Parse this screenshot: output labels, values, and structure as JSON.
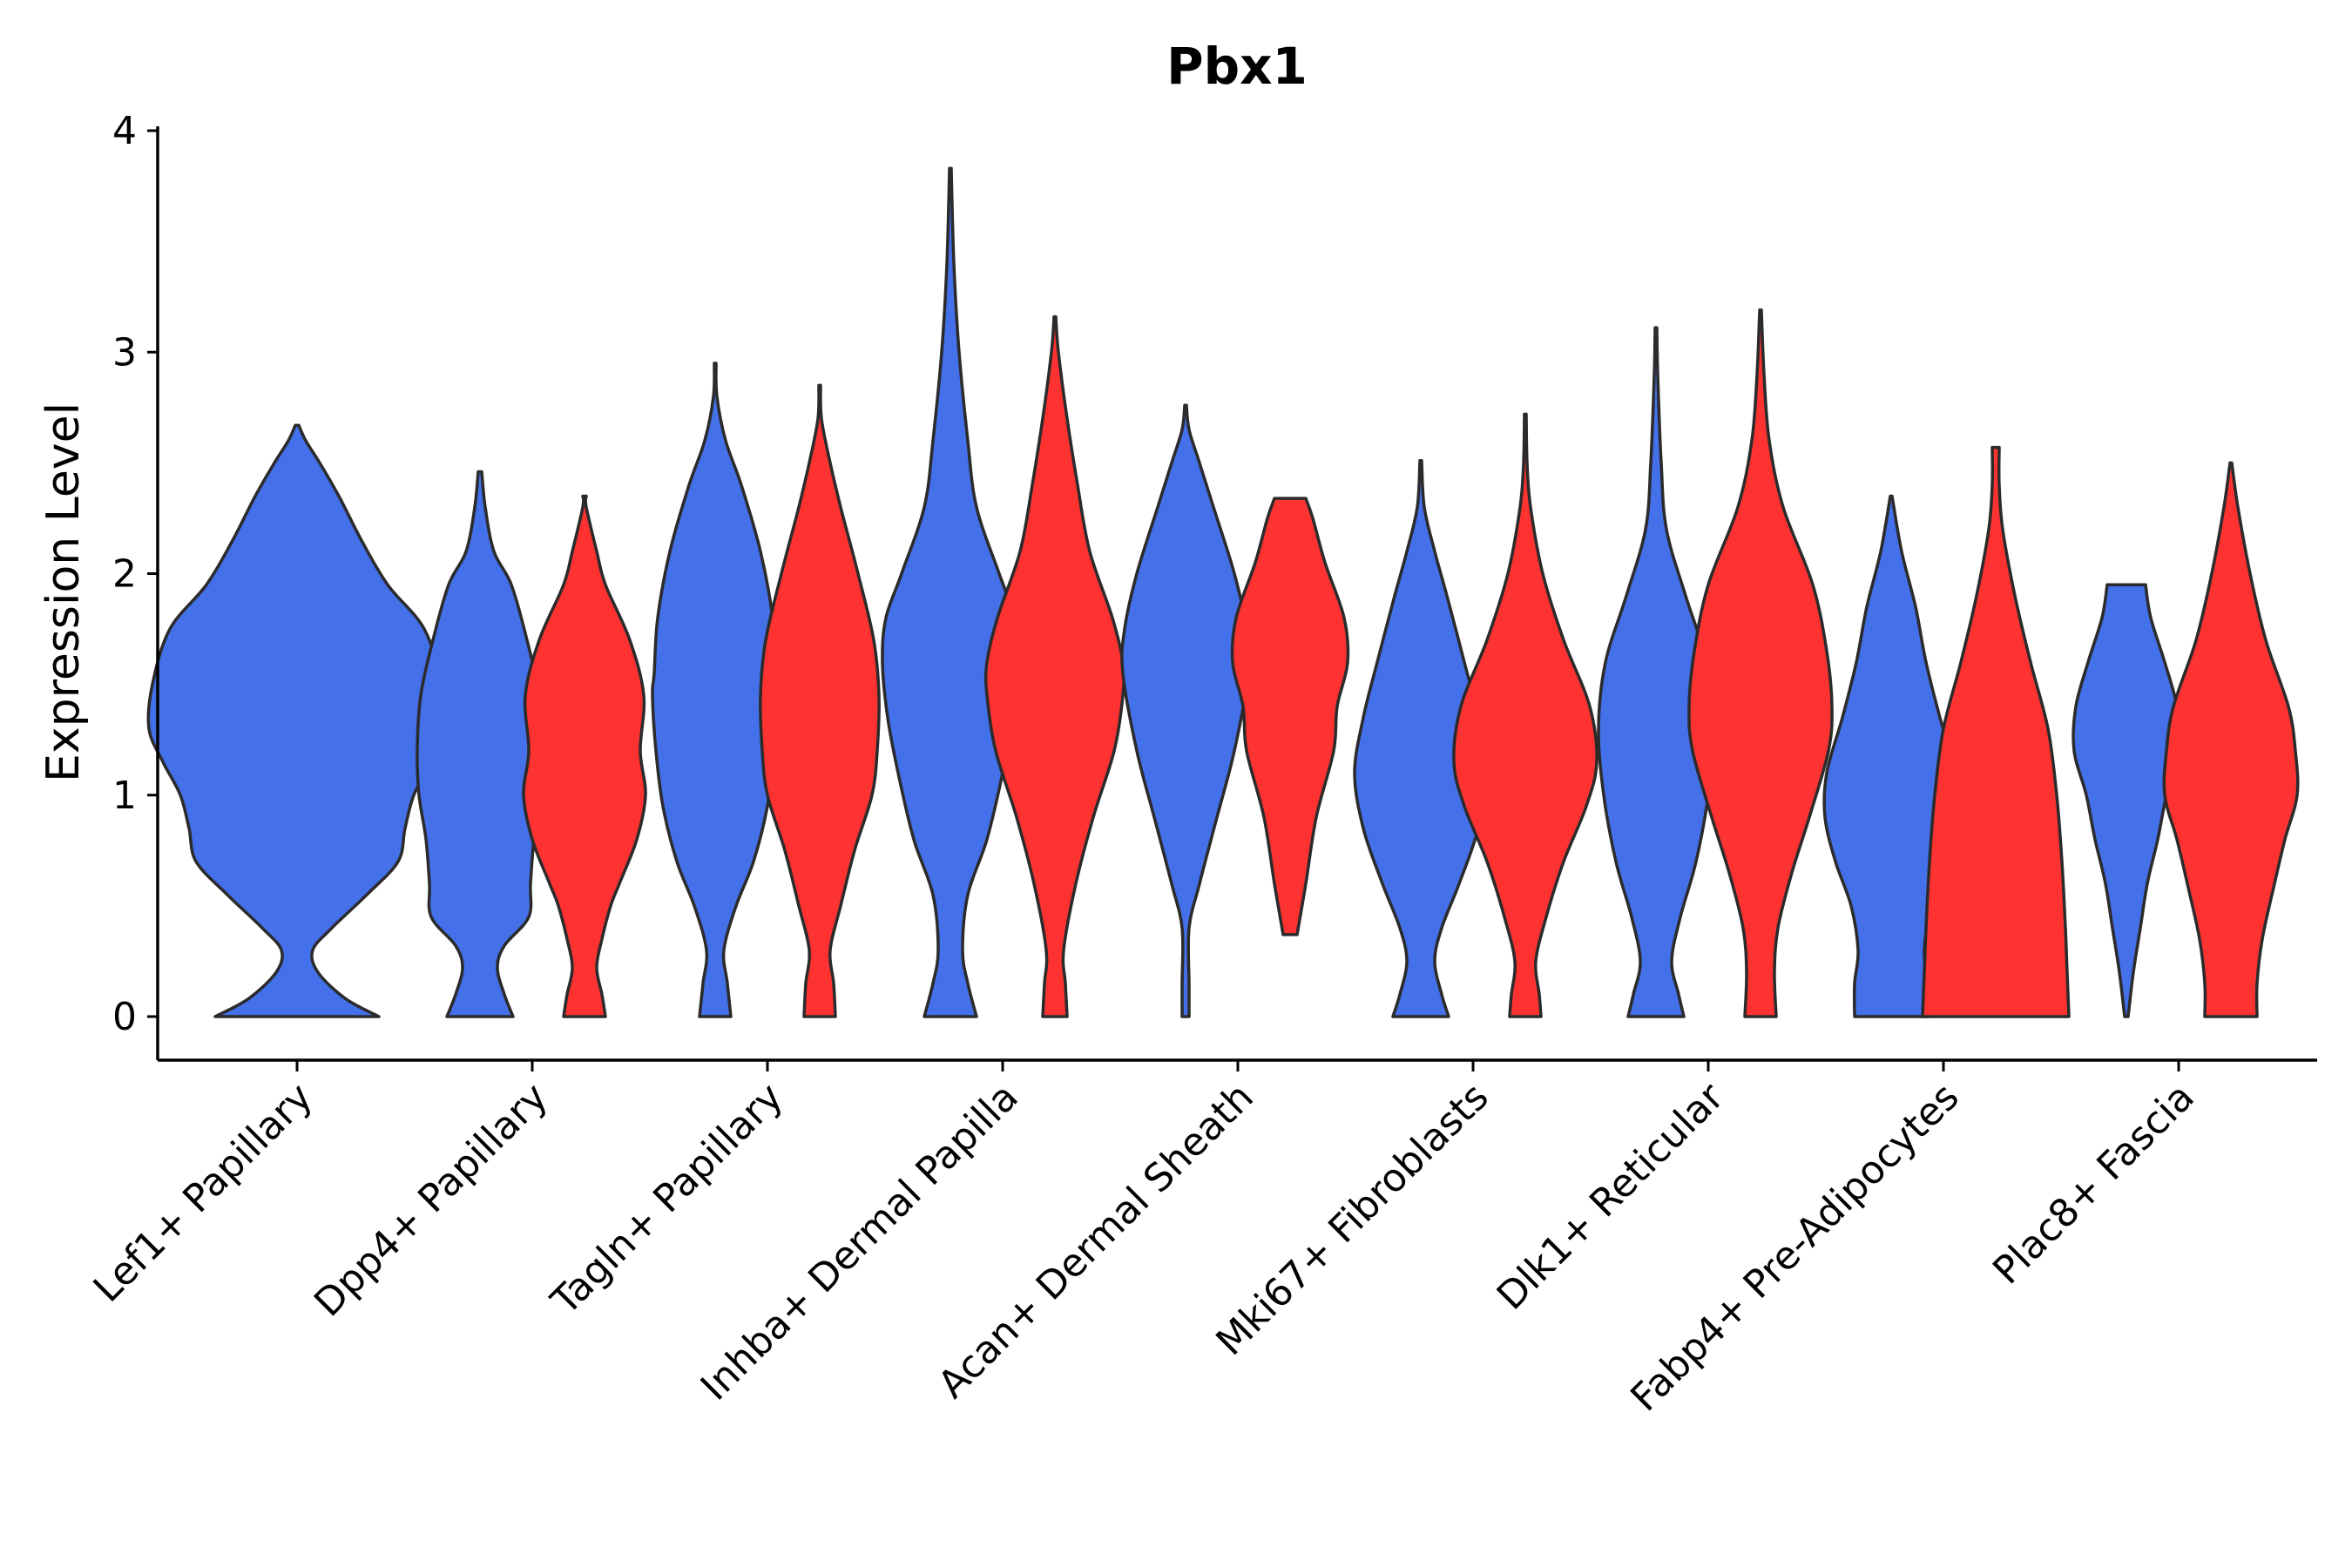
{
  "chart_data": {
    "type": "violin",
    "title": "Pbx1",
    "xlabel": "",
    "ylabel": "Expression Level",
    "ylim": [
      -0.2,
      4.05
    ],
    "yticks": [
      0,
      1,
      2,
      3,
      4
    ],
    "grid": false,
    "legend": "none",
    "colors": {
      "blue": "#4470EA",
      "red": "#FF3232"
    },
    "categories": [
      "Lef1+ Papillary",
      "Dpp4+ Papillary",
      "Tagln+ Papillary",
      "Inhba+ Dermal Papilla",
      "Acan+ Dermal Sheath",
      "Mki67+ Fibroblasts",
      "Dlk1+ Reticular",
      "Fabp4+ Pre-Adipocytes",
      "Plac8+ Fascia"
    ],
    "violins": [
      {
        "category": "Lef1+ Papillary",
        "color": "blue",
        "max": 2.67,
        "profile": [
          [
            0,
            0.47
          ],
          [
            0.08,
            0.28
          ],
          [
            0.2,
            0.12
          ],
          [
            0.3,
            0.09
          ],
          [
            0.4,
            0.2
          ],
          [
            0.55,
            0.4
          ],
          [
            0.7,
            0.58
          ],
          [
            0.85,
            0.62
          ],
          [
            1.0,
            0.67
          ],
          [
            1.15,
            0.77
          ],
          [
            1.3,
            0.85
          ],
          [
            1.5,
            0.83
          ],
          [
            1.75,
            0.73
          ],
          [
            1.95,
            0.52
          ],
          [
            2.15,
            0.37
          ],
          [
            2.35,
            0.24
          ],
          [
            2.5,
            0.13
          ],
          [
            2.6,
            0.05
          ],
          [
            2.67,
            0.01
          ]
        ]
      },
      {
        "category": "Dpp4+ Papillary",
        "color": "blue",
        "max": 2.46,
        "profile": [
          [
            0,
            0.19
          ],
          [
            0.1,
            0.14
          ],
          [
            0.22,
            0.1
          ],
          [
            0.32,
            0.14
          ],
          [
            0.45,
            0.28
          ],
          [
            0.6,
            0.29
          ],
          [
            0.8,
            0.31
          ],
          [
            1.0,
            0.35
          ],
          [
            1.2,
            0.36
          ],
          [
            1.45,
            0.34
          ],
          [
            1.7,
            0.27
          ],
          [
            1.95,
            0.18
          ],
          [
            2.1,
            0.08
          ],
          [
            2.3,
            0.03
          ],
          [
            2.46,
            0.01
          ]
        ]
      },
      {
        "category": "Dpp4+ Papillary",
        "color": "red",
        "max": 2.35,
        "profile": [
          [
            0,
            0.12
          ],
          [
            0.1,
            0.1
          ],
          [
            0.22,
            0.07
          ],
          [
            0.35,
            0.1
          ],
          [
            0.5,
            0.15
          ],
          [
            0.6,
            0.2
          ],
          [
            0.8,
            0.3
          ],
          [
            1.0,
            0.35
          ],
          [
            1.2,
            0.32
          ],
          [
            1.45,
            0.34
          ],
          [
            1.7,
            0.26
          ],
          [
            1.95,
            0.12
          ],
          [
            2.1,
            0.07
          ],
          [
            2.3,
            0.01
          ],
          [
            2.35,
            0.01
          ]
        ]
      },
      {
        "category": "Tagln+ Papillary",
        "color": "blue",
        "max": 2.95,
        "profile": [
          [
            0,
            0.09
          ],
          [
            0.15,
            0.07
          ],
          [
            0.3,
            0.05
          ],
          [
            0.5,
            0.12
          ],
          [
            0.7,
            0.22
          ],
          [
            0.95,
            0.3
          ],
          [
            1.2,
            0.34
          ],
          [
            1.45,
            0.36
          ],
          [
            1.55,
            0.35
          ],
          [
            1.8,
            0.33
          ],
          [
            2.1,
            0.26
          ],
          [
            2.4,
            0.15
          ],
          [
            2.6,
            0.06
          ],
          [
            2.8,
            0.01
          ],
          [
            2.95,
            0.005
          ]
        ]
      },
      {
        "category": "Tagln+ Papillary",
        "color": "red",
        "max": 2.85,
        "profile": [
          [
            0,
            0.09
          ],
          [
            0.15,
            0.08
          ],
          [
            0.3,
            0.06
          ],
          [
            0.5,
            0.12
          ],
          [
            0.75,
            0.2
          ],
          [
            1.0,
            0.3
          ],
          [
            1.2,
            0.33
          ],
          [
            1.45,
            0.34
          ],
          [
            1.7,
            0.31
          ],
          [
            2.0,
            0.22
          ],
          [
            2.3,
            0.12
          ],
          [
            2.5,
            0.06
          ],
          [
            2.7,
            0.01
          ],
          [
            2.85,
            0.005
          ]
        ]
      },
      {
        "category": "Inhba+ Dermal Papilla",
        "color": "blue",
        "max": 3.83,
        "profile": [
          [
            0,
            0.15
          ],
          [
            0.15,
            0.1
          ],
          [
            0.3,
            0.07
          ],
          [
            0.55,
            0.1
          ],
          [
            0.8,
            0.21
          ],
          [
            1.1,
            0.3
          ],
          [
            1.35,
            0.36
          ],
          [
            1.6,
            0.39
          ],
          [
            1.8,
            0.37
          ],
          [
            2.0,
            0.28
          ],
          [
            2.3,
            0.15
          ],
          [
            2.6,
            0.1
          ],
          [
            3.0,
            0.05
          ],
          [
            3.4,
            0.02
          ],
          [
            3.83,
            0.005
          ]
        ]
      },
      {
        "category": "Inhba+ Dermal Papilla",
        "color": "red",
        "max": 3.16,
        "profile": [
          [
            0,
            0.07
          ],
          [
            0.15,
            0.06
          ],
          [
            0.3,
            0.05
          ],
          [
            0.6,
            0.12
          ],
          [
            0.9,
            0.22
          ],
          [
            1.2,
            0.34
          ],
          [
            1.45,
            0.39
          ],
          [
            1.6,
            0.39
          ],
          [
            1.8,
            0.33
          ],
          [
            2.1,
            0.2
          ],
          [
            2.4,
            0.13
          ],
          [
            2.7,
            0.07
          ],
          [
            3.0,
            0.02
          ],
          [
            3.16,
            0.005
          ]
        ]
      },
      {
        "category": "Acan+ Dermal Sheath",
        "color": "blue",
        "max": 2.76,
        "profile": [
          [
            0,
            0.02
          ],
          [
            0.15,
            0.02
          ],
          [
            0.4,
            0.02
          ],
          [
            0.6,
            0.08
          ],
          [
            0.9,
            0.18
          ],
          [
            1.2,
            0.28
          ],
          [
            1.55,
            0.36
          ],
          [
            1.75,
            0.35
          ],
          [
            2.0,
            0.28
          ],
          [
            2.3,
            0.16
          ],
          [
            2.5,
            0.08
          ],
          [
            2.65,
            0.02
          ],
          [
            2.76,
            0.005
          ]
        ]
      },
      {
        "category": "Acan+ Dermal Sheath",
        "color": "red",
        "max": 2.34,
        "profile": [
          [
            0.37,
            0.04
          ],
          [
            0.6,
            0.09
          ],
          [
            0.9,
            0.15
          ],
          [
            1.2,
            0.25
          ],
          [
            1.4,
            0.27
          ],
          [
            1.6,
            0.33
          ],
          [
            1.8,
            0.31
          ],
          [
            2.05,
            0.2
          ],
          [
            2.25,
            0.13
          ],
          [
            2.34,
            0.09
          ]
        ]
      },
      {
        "category": "Mki67+ Fibroblasts",
        "color": "blue",
        "max": 2.51,
        "profile": [
          [
            0,
            0.16
          ],
          [
            0.1,
            0.12
          ],
          [
            0.25,
            0.08
          ],
          [
            0.4,
            0.12
          ],
          [
            0.6,
            0.22
          ],
          [
            0.85,
            0.33
          ],
          [
            1.1,
            0.38
          ],
          [
            1.35,
            0.33
          ],
          [
            1.6,
            0.25
          ],
          [
            1.9,
            0.15
          ],
          [
            2.1,
            0.08
          ],
          [
            2.3,
            0.02
          ],
          [
            2.51,
            0.005
          ]
        ]
      },
      {
        "category": "Mki67+ Fibroblasts",
        "color": "red",
        "max": 2.72,
        "profile": [
          [
            0,
            0.09
          ],
          [
            0.1,
            0.08
          ],
          [
            0.25,
            0.06
          ],
          [
            0.45,
            0.12
          ],
          [
            0.7,
            0.22
          ],
          [
            0.95,
            0.35
          ],
          [
            1.15,
            0.41
          ],
          [
            1.4,
            0.37
          ],
          [
            1.7,
            0.22
          ],
          [
            2.0,
            0.1
          ],
          [
            2.3,
            0.03
          ],
          [
            2.5,
            0.01
          ],
          [
            2.72,
            0.005
          ]
        ]
      },
      {
        "category": "Dlk1+ Reticular",
        "color": "blue",
        "max": 3.11,
        "profile": [
          [
            0,
            0.16
          ],
          [
            0.1,
            0.13
          ],
          [
            0.25,
            0.09
          ],
          [
            0.45,
            0.14
          ],
          [
            0.7,
            0.23
          ],
          [
            1.0,
            0.3
          ],
          [
            1.3,
            0.33
          ],
          [
            1.6,
            0.29
          ],
          [
            1.9,
            0.17
          ],
          [
            2.2,
            0.06
          ],
          [
            2.5,
            0.03
          ],
          [
            2.9,
            0.01
          ],
          [
            3.11,
            0.005
          ]
        ]
      },
      {
        "category": "Dlk1+ Reticular",
        "color": "red",
        "max": 3.19,
        "profile": [
          [
            0,
            0.09
          ],
          [
            0.2,
            0.08
          ],
          [
            0.4,
            0.1
          ],
          [
            0.65,
            0.18
          ],
          [
            0.9,
            0.28
          ],
          [
            1.2,
            0.39
          ],
          [
            1.4,
            0.41
          ],
          [
            1.65,
            0.38
          ],
          [
            1.95,
            0.3
          ],
          [
            2.3,
            0.13
          ],
          [
            2.6,
            0.05
          ],
          [
            2.9,
            0.02
          ],
          [
            3.19,
            0.005
          ]
        ]
      },
      {
        "category": "Fabp4+ Pre-Adipocytes",
        "color": "blue",
        "max": 2.35,
        "profile": [
          [
            0,
            0.21
          ],
          [
            0.15,
            0.21
          ],
          [
            0.3,
            0.19
          ],
          [
            0.5,
            0.23
          ],
          [
            0.7,
            0.32
          ],
          [
            0.9,
            0.38
          ],
          [
            1.1,
            0.37
          ],
          [
            1.35,
            0.28
          ],
          [
            1.6,
            0.2
          ],
          [
            1.85,
            0.14
          ],
          [
            2.1,
            0.06
          ],
          [
            2.35,
            0.005
          ]
        ]
      },
      {
        "category": "Fabp4+ Pre-Adipocytes",
        "color": "red",
        "max": 2.57,
        "profile": [
          [
            0,
            0.42
          ],
          [
            0.2,
            0.41
          ],
          [
            0.4,
            0.4
          ],
          [
            0.7,
            0.38
          ],
          [
            1.0,
            0.35
          ],
          [
            1.3,
            0.3
          ],
          [
            1.6,
            0.2
          ],
          [
            1.9,
            0.11
          ],
          [
            2.2,
            0.04
          ],
          [
            2.4,
            0.02
          ],
          [
            2.57,
            0.02
          ]
        ]
      },
      {
        "category": "Plac8+ Fascia",
        "color": "blue",
        "max": 1.95,
        "profile": [
          [
            0,
            0.01
          ],
          [
            0.2,
            0.04
          ],
          [
            0.4,
            0.08
          ],
          [
            0.6,
            0.12
          ],
          [
            0.8,
            0.18
          ],
          [
            1.0,
            0.23
          ],
          [
            1.2,
            0.3
          ],
          [
            1.4,
            0.29
          ],
          [
            1.6,
            0.22
          ],
          [
            1.8,
            0.14
          ],
          [
            1.95,
            0.11
          ]
        ]
      },
      {
        "category": "Plac8+ Fascia",
        "color": "red",
        "max": 2.5,
        "profile": [
          [
            0,
            0.15
          ],
          [
            0.15,
            0.15
          ],
          [
            0.35,
            0.18
          ],
          [
            0.6,
            0.25
          ],
          [
            0.8,
            0.31
          ],
          [
            1.0,
            0.38
          ],
          [
            1.2,
            0.37
          ],
          [
            1.4,
            0.33
          ],
          [
            1.7,
            0.2
          ],
          [
            2.0,
            0.11
          ],
          [
            2.3,
            0.04
          ],
          [
            2.5,
            0.005
          ]
        ]
      }
    ]
  }
}
